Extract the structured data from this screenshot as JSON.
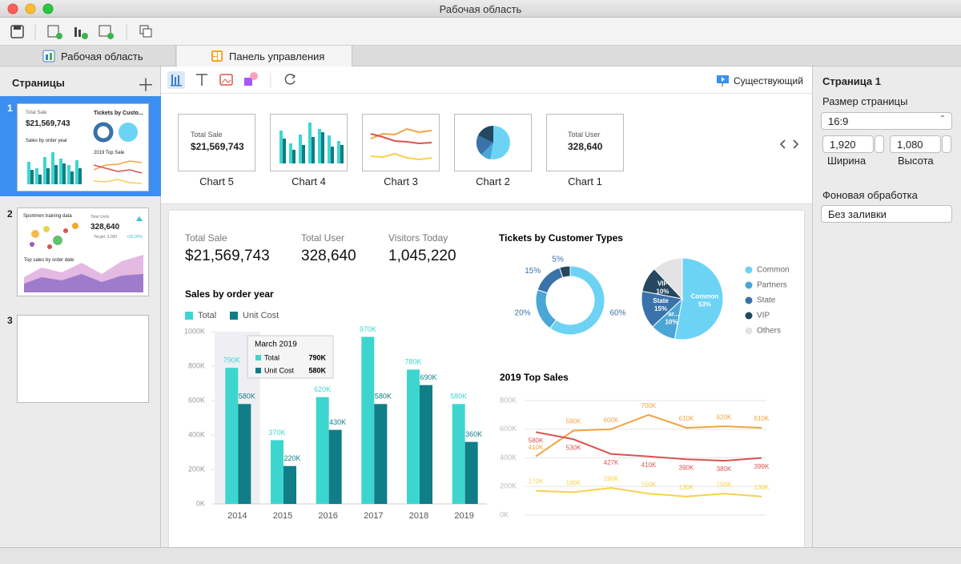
{
  "window": {
    "title": "Рабочая область"
  },
  "tabs": [
    "Рабочая область",
    "Панель управления"
  ],
  "pages_panel": {
    "title": "Страницы",
    "pages": [
      {
        "number": "1",
        "labels": [
          "Total Sale",
          "$21,569,743",
          "Tickets by Custo...",
          "Sales by order year",
          "2019 Top Sale"
        ]
      },
      {
        "number": "2",
        "labels": [
          "Sportmen training data",
          "Total Units",
          "328,640",
          "Target: 3,000",
          "+95.00%",
          "Top sales by order date"
        ]
      },
      {
        "number": "3"
      }
    ]
  },
  "editor_toolbar": {
    "mode": "Существующий"
  },
  "gallery": {
    "items": [
      {
        "name": "Chart 5",
        "kpi_label": "Total Sale",
        "kpi_value": "$21,569,743"
      },
      {
        "name": "Chart 4"
      },
      {
        "name": "Chart 3"
      },
      {
        "name": "Chart 2"
      },
      {
        "name": "Chart 1",
        "kpi_label": "Total User",
        "kpi_value": "328,640"
      }
    ]
  },
  "dashboard": {
    "kpis": [
      {
        "label": "Total Sale",
        "value": "$21,569,743"
      },
      {
        "label": "Total User",
        "value": "328,640"
      },
      {
        "label": "Visitors Today",
        "value": "1,045,220"
      }
    ],
    "bar_chart": {
      "type": "bar",
      "title": "Sales by order year",
      "categories": [
        "2014",
        "2015",
        "2016",
        "2017",
        "2018",
        "2019"
      ],
      "series": [
        {
          "name": "Total",
          "color": "#3dd6cf",
          "values": [
            790000,
            370000,
            620000,
            970000,
            780000,
            580000
          ],
          "value_labels": [
            "790K",
            "370K",
            "620K",
            "970K",
            "780K",
            "580K"
          ]
        },
        {
          "name": "Unit Cost",
          "color": "#117d87",
          "values": [
            580000,
            220000,
            430000,
            580000,
            690000,
            360000
          ],
          "value_labels": [
            "580K",
            "220K",
            "430K",
            "580K",
            "690K",
            "360K"
          ]
        }
      ],
      "ylim": [
        0,
        1000000
      ],
      "yticks": [
        {
          "value": 0,
          "label": "0K"
        },
        {
          "value": 200000,
          "label": "200K"
        },
        {
          "value": 400000,
          "label": "400K"
        },
        {
          "value": 600000,
          "label": "600K"
        },
        {
          "value": 800000,
          "label": "800K"
        },
        {
          "value": 1000000,
          "label": "1000K"
        }
      ],
      "tooltip": {
        "title": "March 2019",
        "rows": [
          [
            "Total",
            "790K"
          ],
          [
            "Unit Cost",
            "580K"
          ]
        ]
      }
    },
    "tickets": {
      "title": "Tickets by Customer Types",
      "legend": {
        "names": [
          "Common",
          "Partners",
          "State",
          "VIP",
          "Others"
        ],
        "colors": [
          "#6dd3f5",
          "#4aa6d6",
          "#3a72aa",
          "#25475f",
          "#e3e3e3"
        ]
      },
      "donut": {
        "type": "donut",
        "values": [
          60,
          20,
          15,
          5
        ],
        "value_labels": [
          "60%",
          "20%",
          "15%",
          "5%"
        ]
      },
      "pie": {
        "type": "pie",
        "values": [
          53,
          10,
          15,
          10,
          12
        ],
        "slice_labels": [
          "Common",
          "Par...",
          "State",
          "VIP",
          null
        ],
        "value_labels": [
          "53%",
          "10%",
          "15%",
          "10%",
          null
        ]
      }
    },
    "line_chart": {
      "type": "line",
      "title": "2019 Top Sales",
      "series": [
        {
          "color": "#f0a444",
          "values": [
            410000,
            590000,
            600000,
            700000,
            610000,
            620000,
            610000
          ],
          "value_labels": [
            "410K",
            "590K",
            "600K",
            "700K",
            "610K",
            "620K",
            "610K"
          ]
        },
        {
          "color": "#d9534f",
          "values": [
            580000,
            530000,
            427000,
            410000,
            390000,
            380000,
            399000
          ],
          "value_labels": [
            "580K",
            "530K",
            "427K",
            "410K",
            "390K",
            "380K",
            "399K"
          ]
        },
        {
          "color": "#f6d04d",
          "values": [
            170000,
            160000,
            190000,
            150000,
            130000,
            150000,
            130000
          ],
          "value_labels": [
            "170K",
            "160K",
            "190K",
            "150K",
            "130K",
            "150K",
            "130K"
          ]
        }
      ],
      "ylim": [
        0,
        800000
      ],
      "yticks": [
        {
          "value": 0,
          "label": "0K"
        },
        {
          "value": 200000,
          "label": "200K"
        },
        {
          "value": 400000,
          "label": "400K"
        },
        {
          "value": 600000,
          "label": "600K"
        },
        {
          "value": 800000,
          "label": "800K"
        }
      ],
      "grid": true
    }
  },
  "properties": {
    "title": "Страница 1",
    "size_label": "Размер страницы",
    "size": "16:9",
    "width": "1,920",
    "height": "1,080",
    "width_label": "Ширина",
    "height_label": "Высота",
    "background_label": "Фоновая обработка",
    "background": "Без заливки"
  }
}
